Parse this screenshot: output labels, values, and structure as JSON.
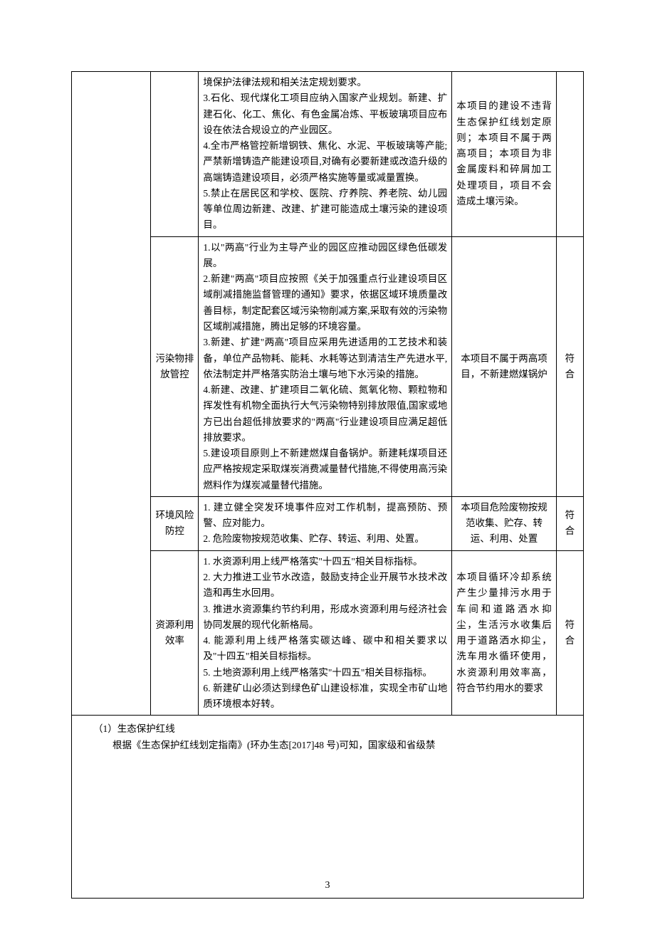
{
  "page": {
    "number": "3"
  },
  "table": {
    "rows": [
      {
        "col2": "",
        "col3": [
          "境保护法律法规和相关法定规划要求。",
          "3.石化、现代煤化工项目应纳入国家产业规划。新建、扩建石化、化工、焦化、有色金属冶炼、平板玻璃项目应布设在依法合规设立的产业园区。",
          "4.全市严格管控新增钢铁、焦化、水泥、平板玻璃等产能;严禁新增铸造产能建设项目,对确有必要新建或改造升级的高端铸造建设项目，必须严格实施等量或减量置换。",
          "5.禁止在居民区和学校、医院、疗养院、养老院、幼儿园等单位周边新建、改建、扩建可能造成土壤污染的建设项目。"
        ],
        "col4": "本项目的建设不违背生态保护红线划定原则；本项目不属于两高项目；本项目为非金属废料和碎屑加工处理项目，项目不会造成土壤污染。",
        "col5": ""
      },
      {
        "col2": "污染物排放管控",
        "col3": [
          "1.以\"两高\"行业为主导产业的园区应推动园区绿色低碳发展。",
          "2.新建\"两高\"项目应按照《关于加强重点行业建设项目区域削减措施监督管理的通知》要求，依据区域环境质量改善目标，制定配套区域污染物削减方案,采取有效的污染物区域削减措施，腾出足够的环境容量。",
          "3.新建、扩建\"两高\"项目应采用先进适用的工艺技术和装备，单位产品物耗、能耗、水耗等达到清洁生产先进水平,依法制定并严格落实防治土壤与地下水污染的措施。",
          "4.新建、改建、扩建项目二氧化硫、氮氧化物、颗粒物和挥发性有机物全面执行大气污染物特别排放限值,国家或地方已出台超低排放要求的\"两高\"行业建设项目应满足超低排放要求。",
          "5.建设项目原则上不新建燃煤自备锅炉。新建耗煤项目还应严格按规定采取煤炭消费减量替代措施,不得使用高污染燃料作为煤炭减量替代措施。"
        ],
        "col4": "本项目不属于两高项目，不新建燃煤锅炉",
        "col5": "符合"
      },
      {
        "col2": "环境风险防控",
        "col3": [
          "1. 建立健全突发环境事件应对工作机制，提高预防、预警、应对能力。",
          "2. 危险废物按规范收集、贮存、转运、利用、处置。"
        ],
        "col4": "本项目危险废物按规范收集、贮存、转运、利用、处置",
        "col5": "符合"
      },
      {
        "col2": "资源利用效率",
        "col3": [
          "1. 水资源利用上线严格落实\"十四五\"相关目标指标。",
          "2. 大力推进工业节水改造，鼓励支持企业开展节水技术改造和再生水回用。",
          "3. 推进水资源集约节约利用，形成水资源利用与经济社会协同发展的现代化新格局。",
          "4. 能源利用上线严格落实碳达峰、碳中和相关要求以及\"十四五\"相关目标指标。",
          "5. 土地资源利用上线严格落实\"十四五\"相关目标指标。",
          "6. 新建矿山必须达到绿色矿山建设标准，实现全市矿山地质环境根本好转。"
        ],
        "col4": "本项目循环冷却系统产生少量排污水用于车间和道路洒水抑尘，生活污水收集后用于道路洒水抑尘，洗车用水循环使用，水资源利用效率高，符合节约用水的要求",
        "col5": "符合"
      }
    ]
  },
  "footer": {
    "line1": "（1）生态保护红线",
    "line2": "根据《生态保护红线划定指南》(环办生态[2017]48 号)可知，国家级和省级禁"
  },
  "styles": {
    "text_color": "#000000",
    "background_color": "#ffffff",
    "border_color": "#000000",
    "font_family": "SimSun",
    "body_fontsize": 14,
    "cell_fontsize": 13.5,
    "line_height": 1.65
  }
}
